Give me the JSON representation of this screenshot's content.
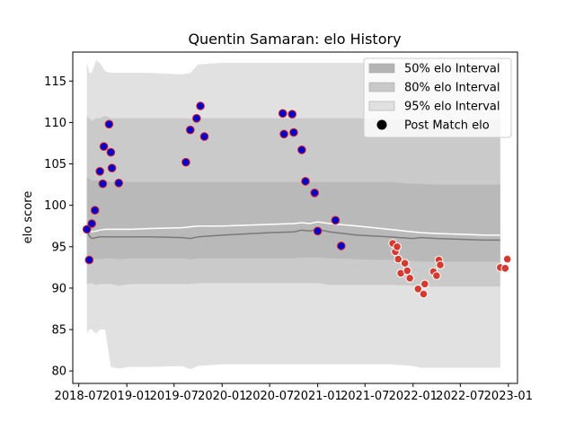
{
  "chart_data": {
    "type": "scatter",
    "title": "Quentin Samaran: elo History",
    "xlabel": "",
    "ylabel": "elo score",
    "x_ticks": [
      "2018-07",
      "2019-01",
      "2019-07",
      "2020-01",
      "2020-07",
      "2021-01",
      "2021-07",
      "2022-01",
      "2022-07",
      "2023-01"
    ],
    "y_ticks": [
      80,
      85,
      90,
      95,
      100,
      105,
      110,
      115
    ],
    "xlim": [
      "2018-06-08",
      "2023-02-05"
    ],
    "ylim": [
      78.5,
      118.5
    ],
    "grid": false,
    "legend": {
      "placement": "top-right",
      "entries": [
        {
          "label": "50% elo Interval",
          "color": "#b4b4b4",
          "kind": "patch"
        },
        {
          "label": "80% elo Interval",
          "color": "#c8c8c8",
          "kind": "patch"
        },
        {
          "label": "95% elo Interval",
          "color": "#e1e1e1",
          "kind": "patch"
        },
        {
          "label": "Post Match elo",
          "color": "#000000",
          "kind": "marker"
        }
      ]
    },
    "colors": {
      "band95": "#e1e1e1",
      "band80": "#cacaca",
      "band50": "#b9b9b9",
      "median_line": "#7a7a7a",
      "mean_line": "#ffffff",
      "point_blue_fill": "#0000cc",
      "point_blue_edge": "#d62020",
      "point_red_fill": "#d63a2f",
      "point_red_edge": "#ffffff"
    },
    "bands": {
      "x": [
        "2018-08-01",
        "2018-08-10",
        "2018-08-20",
        "2018-09-05",
        "2018-09-20",
        "2018-10-10",
        "2018-11-01",
        "2018-12-01",
        "2019-01-15",
        "2019-04-01",
        "2019-08-01",
        "2019-09-01",
        "2019-10-01",
        "2020-01-01",
        "2020-07-01",
        "2020-10-01",
        "2020-11-01",
        "2020-12-01",
        "2021-01-01",
        "2021-02-15",
        "2021-06-01",
        "2021-10-01",
        "2022-01-01",
        "2022-02-01",
        "2022-04-01",
        "2022-07-01",
        "2022-10-01",
        "2022-12-01"
      ],
      "p95_low": [
        84.5,
        85.0,
        85.0,
        84.5,
        85.0,
        85.0,
        80.5,
        80.3,
        80.5,
        80.5,
        80.6,
        80.2,
        80.6,
        80.8,
        80.8,
        80.8,
        80.8,
        80.8,
        80.8,
        80.8,
        80.8,
        80.8,
        80.6,
        80.4,
        80.4,
        80.4,
        80.4,
        80.4
      ],
      "p80_low": [
        90.5,
        90.6,
        90.6,
        90.4,
        90.5,
        90.5,
        90.5,
        90.3,
        90.5,
        90.5,
        90.5,
        90.5,
        90.6,
        90.6,
        90.6,
        90.6,
        90.6,
        90.6,
        90.6,
        90.4,
        90.4,
        90.4,
        90.3,
        90.2,
        90.2,
        90.2,
        90.2,
        90.2
      ],
      "p50_low": [
        93.5,
        93.6,
        93.6,
        93.5,
        93.5,
        93.6,
        93.6,
        93.5,
        93.6,
        93.6,
        93.6,
        93.5,
        93.6,
        93.6,
        93.6,
        93.6,
        93.7,
        93.7,
        93.7,
        93.6,
        93.5,
        93.4,
        93.3,
        93.2,
        93.2,
        93.2,
        93.2,
        93.2
      ],
      "p50_high": [
        103.5,
        103.2,
        103.0,
        103.0,
        103.0,
        103.0,
        102.8,
        102.8,
        102.8,
        102.8,
        102.8,
        102.8,
        102.8,
        102.8,
        102.8,
        102.8,
        102.8,
        102.8,
        102.8,
        102.8,
        102.8,
        102.8,
        102.6,
        102.6,
        102.5,
        102.5,
        102.5,
        102.5
      ],
      "p80_high": [
        110.8,
        110.5,
        110.2,
        110.5,
        110.5,
        110.8,
        110.5,
        110.5,
        110.5,
        110.5,
        110.5,
        110.5,
        110.5,
        110.5,
        110.5,
        110.5,
        110.5,
        110.5,
        110.5,
        110.5,
        110.5,
        110.4,
        110.3,
        110.3,
        110.3,
        110.3,
        110.3,
        110.3
      ],
      "p95_high": [
        117.3,
        116.0,
        116.0,
        117.5,
        117.2,
        116.2,
        116.0,
        116.0,
        116.0,
        116.0,
        115.8,
        116.0,
        117.0,
        117.2,
        117.2,
        117.2,
        117.2,
        117.2,
        117.2,
        117.2,
        117.2,
        117.2,
        117.2,
        117.2,
        117.2,
        117.2,
        117.2,
        117.2
      ],
      "median": [
        97.0,
        96.3,
        96.0,
        96.1,
        96.2,
        96.2,
        96.2,
        96.2,
        96.2,
        96.2,
        96.1,
        96.0,
        96.2,
        96.4,
        96.7,
        96.8,
        97.0,
        96.9,
        97.1,
        96.8,
        96.4,
        96.2,
        96.0,
        96.1,
        96.0,
        95.9,
        95.8,
        95.8
      ],
      "mean": [
        97.5,
        97.2,
        96.8,
        96.9,
        97.0,
        97.1,
        97.1,
        97.1,
        97.1,
        97.2,
        97.3,
        97.4,
        97.5,
        97.5,
        97.7,
        97.8,
        97.9,
        97.8,
        98.0,
        97.8,
        97.5,
        97.1,
        96.8,
        96.7,
        96.6,
        96.5,
        96.4,
        96.4
      ]
    },
    "points": [
      {
        "x": "2018-08-01",
        "y": 97.1,
        "style": "blue"
      },
      {
        "x": "2018-08-10",
        "y": 93.4,
        "style": "blue"
      },
      {
        "x": "2018-08-20",
        "y": 97.8,
        "style": "blue"
      },
      {
        "x": "2018-09-01",
        "y": 99.4,
        "style": "blue"
      },
      {
        "x": "2018-09-20",
        "y": 104.1,
        "style": "blue"
      },
      {
        "x": "2018-10-01",
        "y": 102.6,
        "style": "blue"
      },
      {
        "x": "2018-10-05",
        "y": 107.1,
        "style": "blue"
      },
      {
        "x": "2018-10-25",
        "y": 109.8,
        "style": "blue"
      },
      {
        "x": "2018-11-01",
        "y": 106.4,
        "style": "blue"
      },
      {
        "x": "2018-11-05",
        "y": 104.5,
        "style": "blue"
      },
      {
        "x": "2018-12-01",
        "y": 102.7,
        "style": "blue"
      },
      {
        "x": "2019-08-15",
        "y": 105.2,
        "style": "blue"
      },
      {
        "x": "2019-09-01",
        "y": 109.1,
        "style": "blue"
      },
      {
        "x": "2019-09-25",
        "y": 110.5,
        "style": "blue"
      },
      {
        "x": "2019-10-10",
        "y": 112.0,
        "style": "blue"
      },
      {
        "x": "2019-10-25",
        "y": 108.3,
        "style": "blue"
      },
      {
        "x": "2020-08-20",
        "y": 111.1,
        "style": "blue"
      },
      {
        "x": "2020-08-25",
        "y": 108.6,
        "style": "blue"
      },
      {
        "x": "2020-09-25",
        "y": 111.0,
        "style": "blue"
      },
      {
        "x": "2020-10-01",
        "y": 108.8,
        "style": "blue"
      },
      {
        "x": "2020-11-01",
        "y": 106.7,
        "style": "blue"
      },
      {
        "x": "2020-11-15",
        "y": 102.9,
        "style": "blue"
      },
      {
        "x": "2020-12-20",
        "y": 101.5,
        "style": "blue"
      },
      {
        "x": "2021-01-01",
        "y": 96.9,
        "style": "blue"
      },
      {
        "x": "2021-03-10",
        "y": 98.2,
        "style": "blue"
      },
      {
        "x": "2021-04-01",
        "y": 95.1,
        "style": "blue"
      },
      {
        "x": "2021-10-15",
        "y": 95.4,
        "style": "red"
      },
      {
        "x": "2021-10-25",
        "y": 94.4,
        "style": "red"
      },
      {
        "x": "2021-11-01",
        "y": 95.0,
        "style": "red"
      },
      {
        "x": "2021-11-05",
        "y": 93.5,
        "style": "red"
      },
      {
        "x": "2021-11-15",
        "y": 91.8,
        "style": "red"
      },
      {
        "x": "2021-12-01",
        "y": 93.0,
        "style": "red"
      },
      {
        "x": "2021-12-10",
        "y": 92.1,
        "style": "red"
      },
      {
        "x": "2021-12-20",
        "y": 91.2,
        "style": "red"
      },
      {
        "x": "2022-01-20",
        "y": 89.9,
        "style": "red"
      },
      {
        "x": "2022-02-10",
        "y": 89.3,
        "style": "red"
      },
      {
        "x": "2022-02-15",
        "y": 90.5,
        "style": "red"
      },
      {
        "x": "2022-03-20",
        "y": 92.0,
        "style": "red"
      },
      {
        "x": "2022-04-01",
        "y": 91.5,
        "style": "red"
      },
      {
        "x": "2022-04-10",
        "y": 93.4,
        "style": "red"
      },
      {
        "x": "2022-04-15",
        "y": 92.8,
        "style": "red"
      },
      {
        "x": "2022-12-01",
        "y": 92.5,
        "style": "red"
      },
      {
        "x": "2022-12-20",
        "y": 92.4,
        "style": "red"
      },
      {
        "x": "2022-12-28",
        "y": 93.5,
        "style": "red"
      }
    ]
  }
}
